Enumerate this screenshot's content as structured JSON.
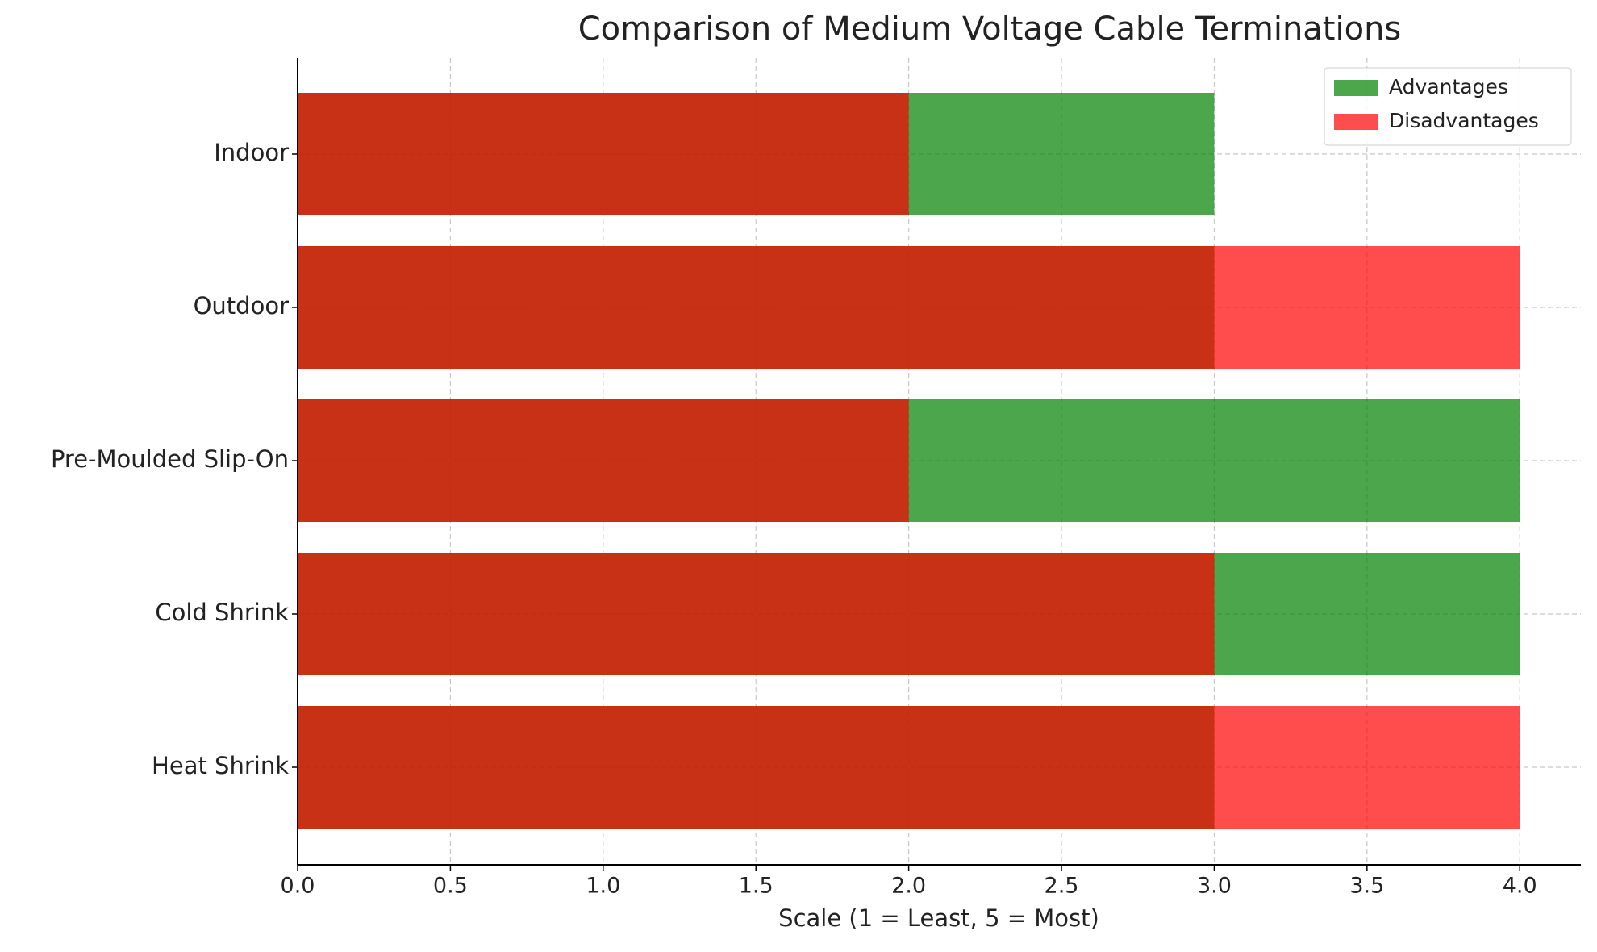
{
  "chart_data": {
    "type": "barh-overlap",
    "title": "Comparison of Medium Voltage Cable Terminations",
    "xlabel": "Scale (1 = Least, 5 = Most)",
    "categories": [
      "Heat Shrink",
      "Cold Shrink",
      "Pre-Moulded Slip-On",
      "Outdoor",
      "Indoor"
    ],
    "series": [
      {
        "name": "Advantages",
        "color": "green",
        "alpha": 0.7,
        "values": [
          3,
          4,
          4,
          3,
          3
        ]
      },
      {
        "name": "Disadvantages",
        "color": "red",
        "alpha": 0.7,
        "values": [
          4,
          3,
          2,
          4,
          2
        ]
      }
    ],
    "xlim": [
      0,
      4.2
    ],
    "xticks": [
      {
        "value": 0,
        "label": "0.0"
      },
      {
        "value": 0.5,
        "label": "0.5"
      },
      {
        "value": 1,
        "label": "1.0"
      },
      {
        "value": 1.5,
        "label": "1.5"
      },
      {
        "value": 2,
        "label": "2.0"
      },
      {
        "value": 2.5,
        "label": "2.5"
      },
      {
        "value": 3,
        "label": "3.0"
      },
      {
        "value": 3.5,
        "label": "3.5"
      },
      {
        "value": 4,
        "label": "4.0"
      }
    ],
    "grid": true,
    "legend": "upper right"
  }
}
